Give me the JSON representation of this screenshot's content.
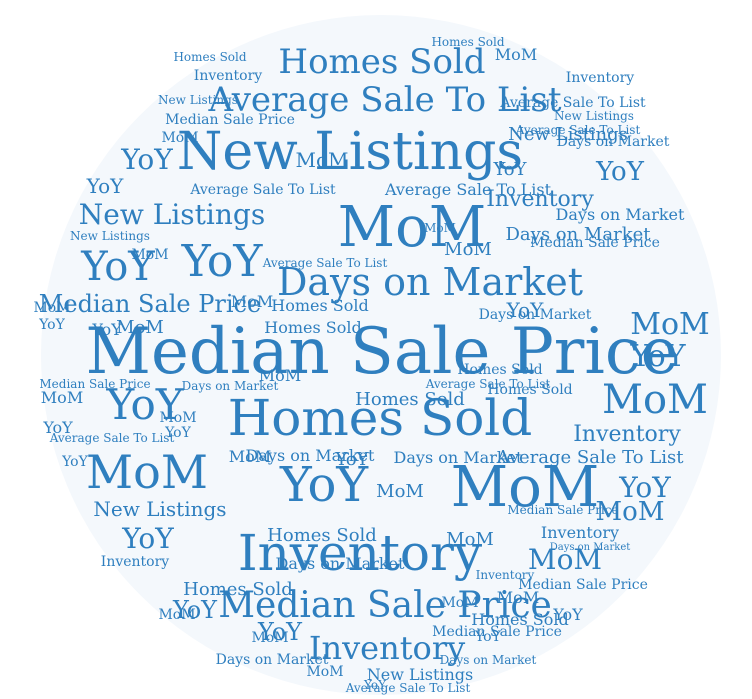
{
  "colors": {
    "circle_fill": "#f4f8fc",
    "word_color": "#2f7fbf",
    "page_bg": "#ffffff"
  },
  "terms": [
    "Median Sale Price",
    "Homes Sold",
    "New Listings",
    "Inventory",
    "Days on Market",
    "Average Sale To List",
    "MoM",
    "YoY"
  ]
}
